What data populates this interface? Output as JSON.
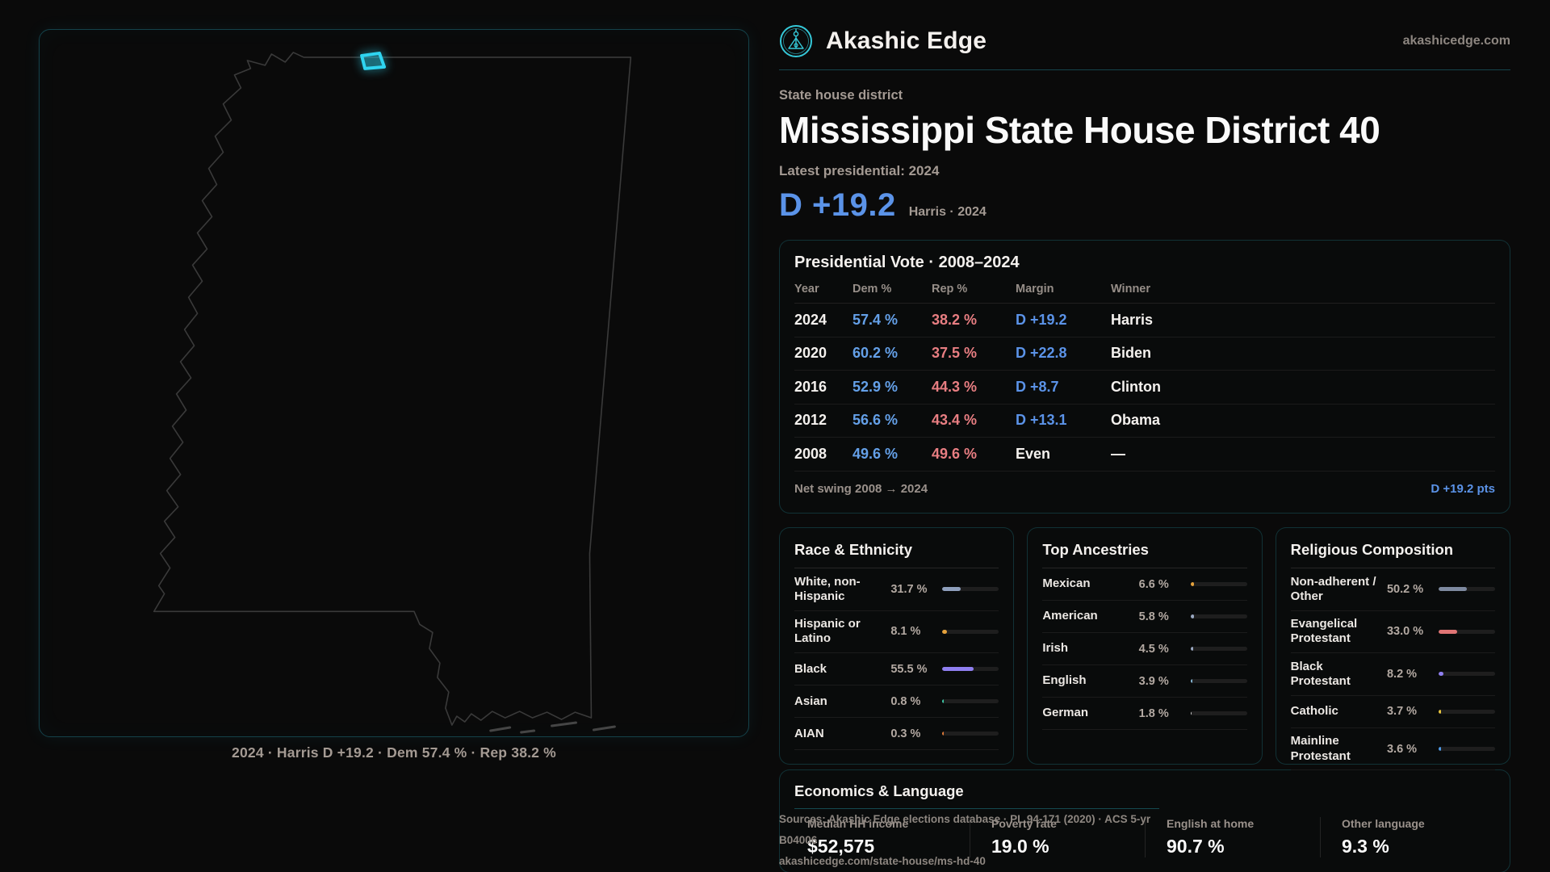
{
  "brand": {
    "name": "Akashic Edge",
    "url": "akashicedge.com"
  },
  "header": {
    "kicker": "State house district",
    "title": "Mississippi State House District 40",
    "latest_label": "Latest presidential: 2024",
    "margin_value": "D +19.2",
    "margin_note": "Harris · 2024"
  },
  "map": {
    "caption": "2024 · Harris D +19.2 · Dem 57.4 % · Rep 38.2 %",
    "outline_color": "#3a3a3a",
    "highlight_color": "#2fd4f0"
  },
  "vote_table": {
    "title": "Presidential Vote · 2008–2024",
    "columns": {
      "year": "Year",
      "dem": "Dem %",
      "rep": "Rep %",
      "margin": "Margin",
      "winner": "Winner"
    },
    "rows": [
      {
        "year": "2024",
        "dem": "57.4 %",
        "rep": "38.2 %",
        "margin": "D +19.2",
        "winner": "Harris"
      },
      {
        "year": "2020",
        "dem": "60.2 %",
        "rep": "37.5 %",
        "margin": "D +22.8",
        "winner": "Biden"
      },
      {
        "year": "2016",
        "dem": "52.9 %",
        "rep": "44.3 %",
        "margin": "D +8.7",
        "winner": "Clinton"
      },
      {
        "year": "2012",
        "dem": "56.6 %",
        "rep": "43.4 %",
        "margin": "D +13.1",
        "winner": "Obama"
      },
      {
        "year": "2008",
        "dem": "49.6 %",
        "rep": "49.6 %",
        "margin": "Even",
        "winner": "—"
      }
    ],
    "footer": {
      "label": "Net swing 2008 → 2024",
      "value": "D +19.2 pts"
    }
  },
  "panels": [
    {
      "title": "Race & Ethnicity",
      "rows": [
        {
          "label": "White, non-Hispanic",
          "value": "31.7 %",
          "pct": 31.7,
          "color": "#8fa0bd"
        },
        {
          "label": "Hispanic or Latino",
          "value": "8.1 %",
          "pct": 8.1,
          "color": "#e5a23c"
        },
        {
          "label": "Black",
          "value": "55.5 %",
          "pct": 55.5,
          "color": "#8f7ff0"
        },
        {
          "label": "Asian",
          "value": "0.8 %",
          "pct": 0.8,
          "color": "#3ec9a7"
        },
        {
          "label": "AIAN",
          "value": "0.3 %",
          "pct": 0.3,
          "color": "#e07b39"
        }
      ]
    },
    {
      "title": "Top Ancestries",
      "rows": [
        {
          "label": "Mexican",
          "value": "6.6 %",
          "pct": 6.6,
          "color": "#e5a23c"
        },
        {
          "label": "American",
          "value": "5.8 %",
          "pct": 5.8,
          "color": "#9aa8c2"
        },
        {
          "label": "Irish",
          "value": "4.5 %",
          "pct": 4.5,
          "color": "#9aa8c2"
        },
        {
          "label": "English",
          "value": "3.9 %",
          "pct": 3.9,
          "color": "#86b9d8"
        },
        {
          "label": "German",
          "value": "1.8 %",
          "pct": 1.8,
          "color": "#cfcfcf"
        }
      ]
    },
    {
      "title": "Religious Composition",
      "rows": [
        {
          "label": "Non-adherent / Other",
          "value": "50.2 %",
          "pct": 50.2,
          "color": "#7e8aa0"
        },
        {
          "label": "Evangelical Protestant",
          "value": "33.0 %",
          "pct": 33.0,
          "color": "#e07575"
        },
        {
          "label": "Black Protestant",
          "value": "8.2 %",
          "pct": 8.2,
          "color": "#8f7ff0"
        },
        {
          "label": "Catholic",
          "value": "3.7 %",
          "pct": 3.7,
          "color": "#e8c63e"
        },
        {
          "label": "Mainline Protestant",
          "value": "3.6 %",
          "pct": 3.6,
          "color": "#4f9be8"
        }
      ]
    }
  ],
  "economics": {
    "title": "Economics & Language",
    "stats": [
      {
        "label": "Median HH income",
        "value": "$52,575"
      },
      {
        "label": "Poverty rate",
        "value": "19.0 %"
      },
      {
        "label": "English at home",
        "value": "90.7 %"
      },
      {
        "label": "Other language",
        "value": "9.3 %"
      }
    ]
  },
  "source": {
    "line1": "Sources: Akashic Edge elections database · PL 94-171 (2020) · ACS 5-yr B04006",
    "line2": "akashicedge.com/state-house/ms-hd-40"
  }
}
